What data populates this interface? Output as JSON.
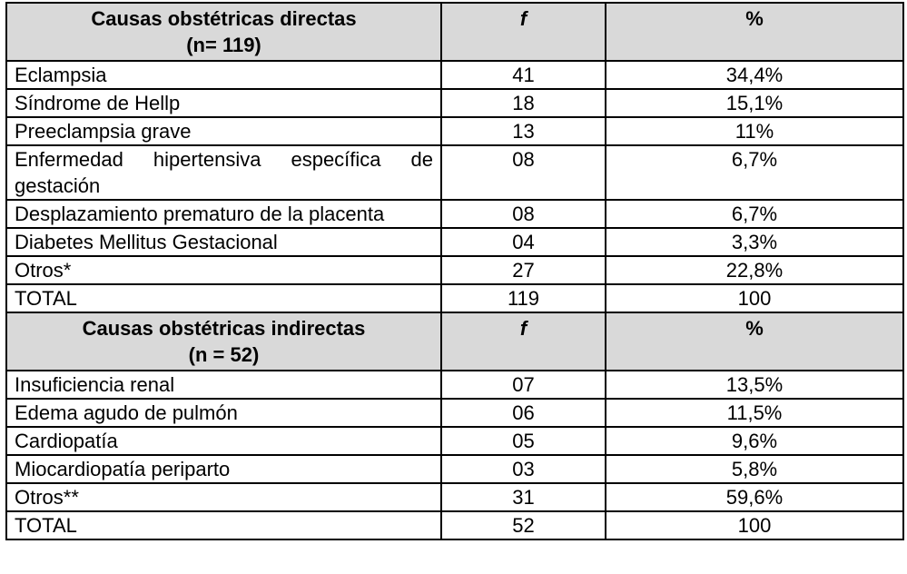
{
  "sections": [
    {
      "header": {
        "title_line1": "Causas obstétricas directas",
        "title_line2": "(n= 119)",
        "col_f": "f",
        "col_pct": "%"
      },
      "rows": [
        {
          "cause": "Eclampsia",
          "f": "41",
          "pct": "34,4%"
        },
        {
          "cause": "Síndrome de Hellp",
          "f": "18",
          "pct": "15,1%"
        },
        {
          "cause": "Preeclampsia grave",
          "f": "13",
          "pct": "11%"
        },
        {
          "cause": "Enfermedad hipertensiva específica de gestación",
          "f": "08",
          "pct": "6,7%"
        },
        {
          "cause": "Desplazamiento prematuro de la placenta",
          "f": "08",
          "pct": "6,7%"
        },
        {
          "cause": "Diabetes Mellitus Gestacional",
          "f": "04",
          "pct": "3,3%"
        },
        {
          "cause": "Otros*",
          "f": "27",
          "pct": "22,8%"
        },
        {
          "cause": "TOTAL",
          "f": "119",
          "pct": "100"
        }
      ]
    },
    {
      "header": {
        "title_line1": "Causas obstétricas indirectas",
        "title_line2": "(n = 52)",
        "col_f": "f",
        "col_pct": "%"
      },
      "rows": [
        {
          "cause": "Insuficiencia renal",
          "f": "07",
          "pct": "13,5%"
        },
        {
          "cause": "Edema agudo de pulmón",
          "f": "06",
          "pct": "11,5%"
        },
        {
          "cause": "Cardiopatía",
          "f": "05",
          "pct": "9,6%"
        },
        {
          "cause": "Miocardiopatía periparto",
          "f": "03",
          "pct": "5,8%"
        },
        {
          "cause": "Otros**",
          "f": "31",
          "pct": "59,6%"
        },
        {
          "cause": "TOTAL",
          "f": "52",
          "pct": "100"
        }
      ]
    }
  ],
  "colors": {
    "header_bg": "#d9d9d9",
    "border": "#000000",
    "text": "#000000"
  }
}
